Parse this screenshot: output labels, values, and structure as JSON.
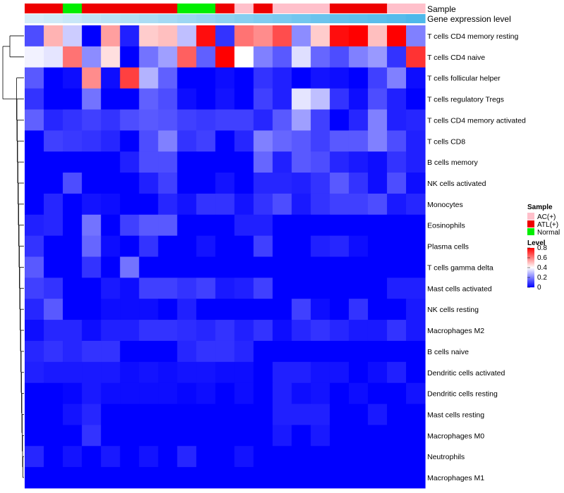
{
  "chart_data": {
    "type": "heatmap",
    "annotation_labels": {
      "sample": "Sample",
      "gene_expression": "Gene expression level"
    },
    "sample_groups": [
      "ATL(+)",
      "ATL(+)",
      "Normal",
      "ATL(+)",
      "ATL(+)",
      "ATL(+)",
      "ATL(+)",
      "ATL(+)",
      "Normal",
      "Normal",
      "ATL(+)",
      "AC(+)",
      "ATL(+)",
      "AC(+)",
      "AC(+)",
      "AC(+)",
      "ATL(+)",
      "ATL(+)",
      "ATL(+)",
      "AC(+)",
      "AC(+)"
    ],
    "gene_expression_level": [
      0.05,
      0.1,
      0.15,
      0.2,
      0.25,
      0.3,
      0.35,
      0.4,
      0.45,
      0.5,
      0.55,
      0.6,
      0.65,
      0.7,
      0.75,
      0.8,
      0.85,
      0.88,
      0.91,
      0.95,
      1.0
    ],
    "rows": [
      {
        "label": "T cells CD4 memory resting",
        "values": [
          0.12,
          0.52,
          0.32,
          0.0,
          0.55,
          0.05,
          0.48,
          0.5,
          0.3,
          0.78,
          0.08,
          0.62,
          0.58,
          0.68,
          0.22,
          0.48,
          0.78,
          0.8,
          0.5,
          0.82,
          0.2
        ]
      },
      {
        "label": "T cells CD4 naive",
        "values": [
          0.38,
          0.36,
          0.62,
          0.22,
          0.45,
          0.0,
          0.18,
          0.25,
          0.65,
          0.15,
          0.8,
          0.4,
          0.2,
          0.14,
          0.35,
          0.16,
          0.12,
          0.2,
          0.24,
          0.08,
          0.72
        ]
      },
      {
        "label": "T cells follicular helper",
        "values": [
          0.14,
          0.0,
          0.02,
          0.58,
          0.02,
          0.7,
          0.28,
          0.15,
          0.0,
          0.0,
          0.02,
          0.0,
          0.08,
          0.05,
          0.0,
          0.03,
          0.02,
          0.0,
          0.1,
          0.2,
          0.02
        ]
      },
      {
        "label": "T cells regulatory  Tregs",
        "values": [
          0.08,
          0.0,
          0.0,
          0.18,
          0.0,
          0.0,
          0.15,
          0.12,
          0.02,
          0.0,
          0.03,
          0.0,
          0.1,
          0.05,
          0.36,
          0.3,
          0.08,
          0.02,
          0.12,
          0.05,
          0.0
        ]
      },
      {
        "label": "T cells CD4 memory activated",
        "values": [
          0.15,
          0.06,
          0.08,
          0.1,
          0.08,
          0.12,
          0.14,
          0.13,
          0.1,
          0.09,
          0.1,
          0.1,
          0.06,
          0.14,
          0.25,
          0.1,
          0.0,
          0.06,
          0.2,
          0.05,
          0.06
        ]
      },
      {
        "label": "T cells CD8",
        "values": [
          0.0,
          0.1,
          0.09,
          0.08,
          0.06,
          0.0,
          0.12,
          0.2,
          0.08,
          0.1,
          0.0,
          0.06,
          0.2,
          0.16,
          0.14,
          0.1,
          0.14,
          0.14,
          0.2,
          0.12,
          0.05
        ]
      },
      {
        "label": "B cells memory",
        "values": [
          0.0,
          0.0,
          0.0,
          0.0,
          0.0,
          0.05,
          0.12,
          0.12,
          0.0,
          0.0,
          0.0,
          0.0,
          0.16,
          0.05,
          0.14,
          0.12,
          0.06,
          0.04,
          0.02,
          0.08,
          0.05
        ]
      },
      {
        "label": "NK cells activated",
        "values": [
          0.0,
          0.0,
          0.12,
          0.0,
          0.0,
          0.0,
          0.05,
          0.1,
          0.0,
          0.0,
          0.03,
          0.0,
          0.06,
          0.06,
          0.05,
          0.08,
          0.14,
          0.08,
          0.02,
          0.12,
          0.02
        ]
      },
      {
        "label": "Monocytes",
        "values": [
          0.0,
          0.06,
          0.0,
          0.03,
          0.02,
          0.0,
          0.0,
          0.06,
          0.03,
          0.08,
          0.08,
          0.03,
          0.08,
          0.12,
          0.04,
          0.08,
          0.1,
          0.1,
          0.12,
          0.04,
          0.06
        ]
      },
      {
        "label": "Eosinophils",
        "values": [
          0.05,
          0.06,
          0.0,
          0.18,
          0.0,
          0.1,
          0.14,
          0.14,
          0.0,
          0.0,
          0.0,
          0.05,
          0.05,
          0.0,
          0.0,
          0.0,
          0.0,
          0.0,
          0.0,
          0.0,
          0.0
        ]
      },
      {
        "label": "Plasma cells",
        "values": [
          0.08,
          0.0,
          0.0,
          0.16,
          0.02,
          0.0,
          0.08,
          0.0,
          0.0,
          0.03,
          0.0,
          0.0,
          0.1,
          0.0,
          0.0,
          0.05,
          0.06,
          0.02,
          0.0,
          0.0,
          0.0
        ]
      },
      {
        "label": "T cells gamma delta",
        "values": [
          0.14,
          0.0,
          0.0,
          0.08,
          0.0,
          0.18,
          0.0,
          0.0,
          0.0,
          0.0,
          0.0,
          0.0,
          0.0,
          0.0,
          0.0,
          0.0,
          0.0,
          0.0,
          0.0,
          0.0,
          0.0
        ]
      },
      {
        "label": "Mast cells activated",
        "values": [
          0.1,
          0.08,
          0.0,
          0.0,
          0.04,
          0.02,
          0.1,
          0.1,
          0.08,
          0.1,
          0.04,
          0.05,
          0.1,
          0.0,
          0.0,
          0.0,
          0.0,
          0.0,
          0.0,
          0.05,
          0.05
        ]
      },
      {
        "label": "NK cells resting",
        "values": [
          0.06,
          0.14,
          0.0,
          0.0,
          0.02,
          0.02,
          0.02,
          0.0,
          0.05,
          0.0,
          0.0,
          0.0,
          0.0,
          0.0,
          0.1,
          0.02,
          0.0,
          0.08,
          0.0,
          0.0,
          0.04
        ]
      },
      {
        "label": "Macrophages M2",
        "values": [
          0.02,
          0.06,
          0.06,
          0.02,
          0.05,
          0.05,
          0.08,
          0.08,
          0.07,
          0.06,
          0.08,
          0.05,
          0.08,
          0.02,
          0.06,
          0.08,
          0.06,
          0.04,
          0.04,
          0.08,
          0.04
        ]
      },
      {
        "label": "B cells naive",
        "values": [
          0.06,
          0.08,
          0.06,
          0.08,
          0.08,
          0.0,
          0.0,
          0.0,
          0.06,
          0.08,
          0.08,
          0.06,
          0.0,
          0.0,
          0.0,
          0.0,
          0.0,
          0.0,
          0.0,
          0.0,
          0.0
        ]
      },
      {
        "label": "Dendritic cells activated",
        "values": [
          0.05,
          0.04,
          0.04,
          0.04,
          0.04,
          0.02,
          0.03,
          0.02,
          0.03,
          0.03,
          0.02,
          0.02,
          0.0,
          0.05,
          0.05,
          0.03,
          0.03,
          0.0,
          0.02,
          0.05,
          0.0
        ]
      },
      {
        "label": "Dendritic cells resting",
        "values": [
          0.0,
          0.0,
          0.01,
          0.04,
          0.02,
          0.02,
          0.02,
          0.02,
          0.01,
          0.02,
          0.0,
          0.02,
          0.0,
          0.05,
          0.02,
          0.03,
          0.0,
          0.02,
          0.0,
          0.0,
          0.03
        ]
      },
      {
        "label": "Mast cells resting",
        "values": [
          0.0,
          0.0,
          0.03,
          0.06,
          0.0,
          0.0,
          0.0,
          0.0,
          0.0,
          0.0,
          0.0,
          0.0,
          0.0,
          0.05,
          0.05,
          0.05,
          0.0,
          0.0,
          0.04,
          0.0,
          0.0
        ]
      },
      {
        "label": "Macrophages M0",
        "values": [
          0.0,
          0.0,
          0.0,
          0.08,
          0.0,
          0.0,
          0.0,
          0.0,
          0.0,
          0.0,
          0.0,
          0.0,
          0.0,
          0.04,
          0.0,
          0.04,
          0.0,
          0.0,
          0.0,
          0.0,
          0.0
        ]
      },
      {
        "label": "Neutrophils",
        "values": [
          0.06,
          0.0,
          0.03,
          0.0,
          0.04,
          0.0,
          0.03,
          0.0,
          0.06,
          0.0,
          0.0,
          0.03,
          0.0,
          0.0,
          0.0,
          0.0,
          0.0,
          0.0,
          0.0,
          0.0,
          0.0
        ]
      },
      {
        "label": "Macrophages M1",
        "values": [
          0.0,
          0.0,
          0.0,
          0.0,
          0.0,
          0.0,
          0.0,
          0.0,
          0.0,
          0.0,
          0.0,
          0.0,
          0.0,
          0.0,
          0.0,
          0.0,
          0.0,
          0.0,
          0.0,
          0.0,
          0.0
        ]
      }
    ],
    "legend_sample": {
      "title": "Sample",
      "entries": [
        {
          "label": "AC(+)",
          "color": "#ffc0cb"
        },
        {
          "label": "ATL(+)",
          "color": "#ee0000"
        },
        {
          "label": "Normal",
          "color": "#00ee00"
        }
      ]
    },
    "legend_level": {
      "title": "Level",
      "ticks": [
        "0.8",
        "0.6",
        "0.4",
        "0.2",
        "0"
      ],
      "tick_values": [
        0.8,
        0.6,
        0.4,
        0.2,
        0
      ],
      "range": [
        0,
        0.8
      ]
    },
    "colors": {
      "low": "#0000ff",
      "mid": "#ffffff",
      "high": "#ff0000",
      "expr_low": "#ddeffa",
      "expr_high": "#4eb8ea"
    },
    "dendrogram_tree": [
      [
        0,
        1
      ],
      [
        2,
        3
      ],
      [
        4,
        5
      ],
      [
        6,
        7
      ],
      [
        8,
        9
      ],
      [
        10,
        11
      ],
      [
        12,
        13
      ],
      [
        14,
        15
      ],
      [
        16,
        17
      ],
      [
        18,
        19
      ],
      [
        20,
        21
      ]
    ]
  }
}
